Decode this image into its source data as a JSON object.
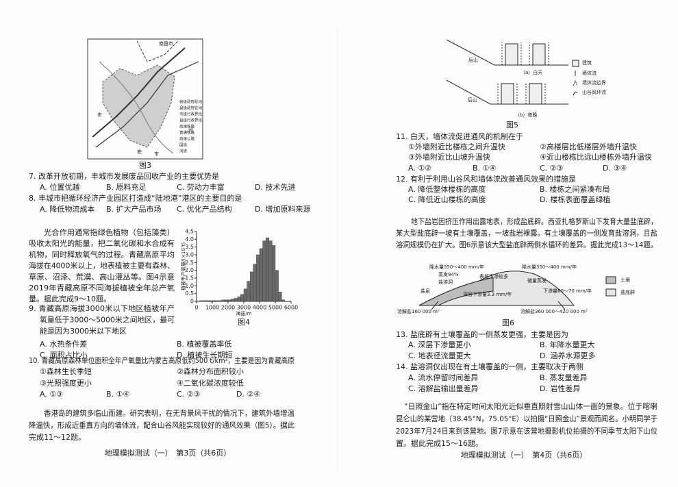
{
  "left": {
    "figure3": {
      "caption": "图3",
      "labels": [
        "南昌市",
        "市",
        "安",
        "市",
        "州"
      ],
      "legend": [
        "省级政府驻地",
        "县级政府驻地",
        "市级行政界线",
        "县级行政界线",
        "高速铁路",
        "普通铁路",
        "高速公路",
        "国道",
        "河流"
      ]
    },
    "q7": {
      "stem": "7. 改革开放初期，丰城市发展废品回收产业的主要优势是",
      "options": [
        "A. 位置优越",
        "B. 原料充足",
        "C. 劳动力丰富",
        "D. 技术先进"
      ]
    },
    "q8": {
      "stem": "8. 丰城市把循环经济产业园区打造成“陆地港”港区的主要目的是",
      "options": [
        "A. 降低物流成本",
        "B. 扩大产品市场",
        "C. 优化产品结构",
        "D. 增加原料来源"
      ]
    },
    "passage1": {
      "lines": [
        "光合作用通常指绿色植物（包括藻类）",
        "吸收太阳光的能量，把二氧化碳和水合成有",
        "机物，同时释放氧气的过程。青藏高原平均",
        "海拔在4000米以上，地表植被主要有森林、",
        "草原、沼泽、荒漠、高山灌丛等。图4示意",
        "2019年青藏高原不同海拔植被全年总产氧",
        "量。据此完成9～10题。"
      ]
    },
    "figure4": {
      "type": "histogram",
      "y_label": "植被年产氧量/(×10⁷t)",
      "x_label": "海拔/m",
      "caption": "图4",
      "color": "#6b6b6b",
      "xlim": [
        0,
        6000
      ],
      "ylim": [
        0,
        4.5
      ],
      "xticks": [
        0,
        1000,
        2000,
        3000,
        4000,
        5000,
        6000
      ],
      "yticks": [
        0,
        0.5,
        {
          "value": 1,
          "label": "1.0"
        },
        1.5,
        {
          "value": 2,
          "label": "2.0"
        },
        2.5,
        {
          "value": 3,
          "label": "3.0"
        },
        3.5,
        {
          "value": 4,
          "label": "4.0"
        },
        4.5
      ],
      "bins": [
        200,
        400,
        600,
        800,
        1000,
        1200,
        1400,
        1600,
        1800,
        2000,
        2200,
        2400,
        2600,
        2800,
        3000,
        3200,
        3400,
        3600,
        3800,
        4000,
        4200,
        4400,
        4600,
        4800,
        5000,
        5200,
        5400,
        5600
      ],
      "values": [
        0.05,
        0.05,
        0.05,
        0.05,
        0.05,
        0.05,
        0.05,
        0.1,
        0.1,
        0.1,
        0.15,
        0.2,
        0.3,
        0.45,
        0.8,
        1.3,
        1.9,
        2.4,
        3.0,
        3.4,
        3.9,
        4.1,
        3.9,
        3.6,
        2.0,
        0.6,
        0.1
      ]
    },
    "q9": {
      "stem_lines": [
        "9. 青藏高原海拔3000米以下地区植被年产",
        "氧量低于3000～5000米之间地区，最可",
        "能是因为3000米以下地区"
      ],
      "options": [
        "A. 水热条件差",
        "B. 植被覆盖率低",
        "C. 面积占比小",
        "D. 植被生长期短"
      ]
    },
    "q10": {
      "stem": "10. 青藏高原森林单位面积全年产氧量比内蒙古高原低约500 t/km²，主要是因为青藏高原",
      "statements": [
        "①森林生长季短",
        "②森林分布面积较小",
        "③光照强度更小",
        "④二氧化碳浓度较低"
      ],
      "options": [
        "A. ①③",
        "B. ①④",
        "C. ②③",
        "D. ②④"
      ]
    },
    "passage2": {
      "lines": [
        "香港岛的建筑多临山而建。研究表明，在无背景风干扰的情况下，建筑外墙增温",
        "降温快，形成近垂直方向的墙体流，配合山谷风能实现较好的通风效果（图5）。据此",
        "完成11～12题。"
      ]
    },
    "footer": "地理模拟测试（一）　第3页（共6页）"
  },
  "right": {
    "figure5": {
      "labels": [
        "后山",
        "（a）白天",
        "后山",
        "（b）夜晚"
      ],
      "legend": [
        "建筑",
        "墙体流",
        "墙体流边界",
        "山谷风环流"
      ],
      "caption": "图5"
    },
    "q11": {
      "stem": "11. 白天，墙体流促进通风的机制在于",
      "statements": [
        "①外墙附近比楼栋之间升温快",
        "②高楼层比低楼层外墙升温快",
        "③外墙附近比山坡升温快",
        "④近山楼栋比远山楼栋外墙升温快"
      ],
      "options": [
        "A. ①②",
        "B. ①④",
        "C. ②③",
        "D. ③④"
      ]
    },
    "q12": {
      "stem": "12. 有利于利用山谷风和墙体流改善通风效果的措施是",
      "options": [
        "A. 降低整体楼栋的高度",
        "B. 楼栋之间紧凑布局",
        "C. 降低近山楼栋的高度",
        "D. 楼栋表面覆盖绿植"
      ]
    },
    "passage1": {
      "lines": [
        "地下盐岩因挤压作用出露地表，形成盐底辟。西亚扎格罗斯山下发育大量盐底辟，",
        "某大型盐底辟一坡有土壤覆盖，一坡盐岩裸露。有土壤覆盖的一侧发育盐溶洞，且盐",
        "溶洞规模仍在扩大。图6示意该大型盐底辟两侧水循环的差异。据此完成13～14题。"
      ]
    },
    "figure6": {
      "labels": [
        "降水量350～400 mm/年",
        "降水量350～400 mm/年",
        "蒸发94%",
        "盐溶洞",
        "表层下渗较多",
        "微量蒸发",
        "盐泉",
        "深层下渗量3.3 mm/年",
        "下渗量60～70 mm/年",
        "溶解盐160 000 m³",
        "溶解盐360 000～420 000 m³"
      ],
      "legend": [
        "土壤",
        "盐底辟"
      ],
      "caption": "图6"
    },
    "q13": {
      "stem": "13. 盐底辟有土壤覆盖的一侧蒸发更强，主要是因为",
      "options": [
        "A. 深层下渗量更小",
        "B. 年降水量更大",
        "C. 地表径流量更大",
        "D. 涵养水源更多"
      ]
    },
    "q14": {
      "stem": "14. 盐溶洞仅出现在有土壤覆盖的一侧，主要取决于两侧",
      "options": [
        "A. 流水停留时间差异",
        "B. 蒸发量差异",
        "C. 溶解盐输出量差异",
        "D. 岩性差异"
      ]
    },
    "passage2": {
      "lines": [
        "“日照金山”指在特定时间太阳光近似垂直照射雪山山体一面的景象。位于喀喇",
        "昆仑山的某营地（38.45°N，75.05°E）以拍摄“日照金山”景观而闻名。小明同学于",
        "2023年7月24日来到该营地。图7示意在该营地摄影机位拍摄的不同季节太阳下山位",
        "置。据此完成15～16题。"
      ]
    },
    "footer": "地理模拟测试（一）　第4页（共6页）"
  }
}
